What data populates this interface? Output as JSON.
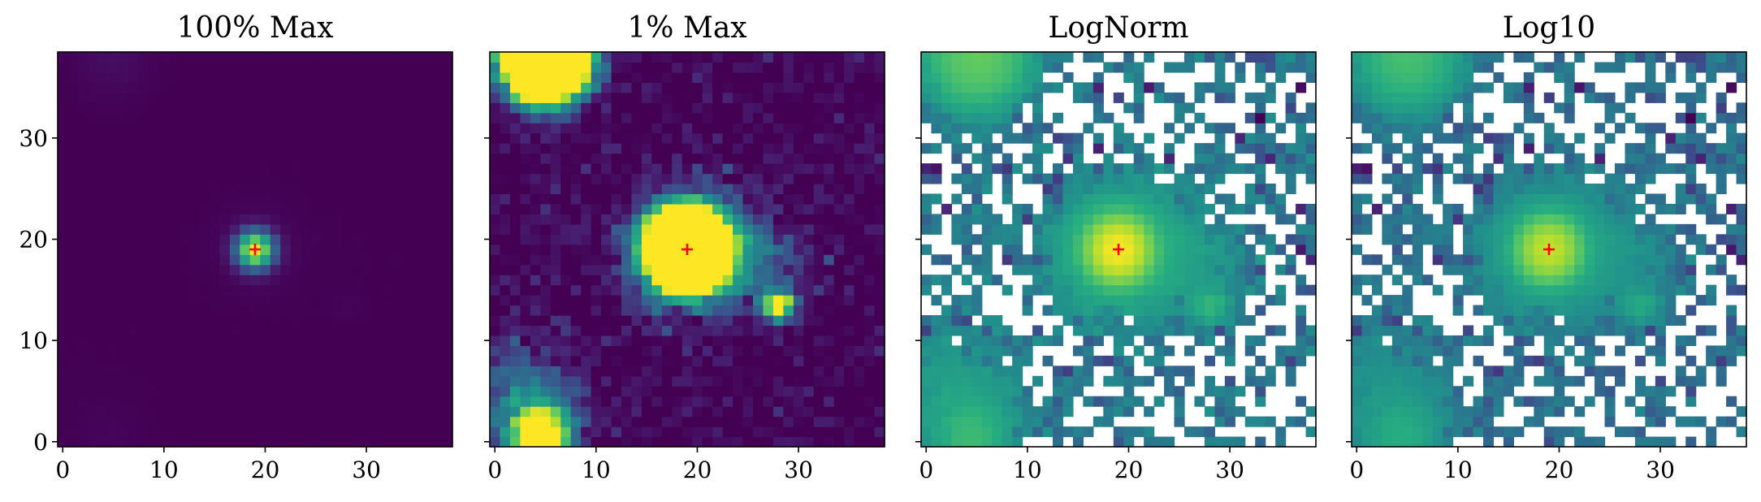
{
  "chart_data": [
    {
      "type": "heatmap",
      "title": "100% Max",
      "xlabel": "",
      "ylabel": "",
      "xlim": [
        -0.5,
        38.5
      ],
      "ylim": [
        -0.5,
        38.5
      ],
      "x_ticks": [
        0,
        10,
        20,
        30
      ],
      "y_ticks": [
        0,
        10,
        20,
        30
      ],
      "y_tick_labels_shown": true,
      "grid": false,
      "colormap": "viridis",
      "norm": "linear",
      "clip_fraction": 1.0,
      "marker": {
        "symbol": "+",
        "x": 19,
        "y": 19,
        "color": "#ff0000"
      }
    },
    {
      "type": "heatmap",
      "title": "1% Max",
      "xlabel": "",
      "ylabel": "",
      "xlim": [
        -0.5,
        38.5
      ],
      "ylim": [
        -0.5,
        38.5
      ],
      "x_ticks": [
        0,
        10,
        20,
        30
      ],
      "y_ticks": [
        0,
        10,
        20,
        30
      ],
      "y_tick_labels_shown": false,
      "grid": false,
      "colormap": "viridis",
      "norm": "linear",
      "clip_fraction": 0.01,
      "marker": {
        "symbol": "+",
        "x": 19,
        "y": 19,
        "color": "#ff0000"
      }
    },
    {
      "type": "heatmap",
      "title": "LogNorm",
      "xlabel": "",
      "ylabel": "",
      "xlim": [
        -0.5,
        38.5
      ],
      "ylim": [
        -0.5,
        38.5
      ],
      "x_ticks": [
        0,
        10,
        20,
        30
      ],
      "y_ticks": [
        0,
        10,
        20,
        30
      ],
      "y_tick_labels_shown": false,
      "grid": false,
      "colormap": "viridis",
      "norm": "log",
      "nonpositive_pixels": "blank",
      "marker": {
        "symbol": "+",
        "x": 19,
        "y": 19,
        "color": "#ff0000"
      }
    },
    {
      "type": "heatmap",
      "title": "Log10",
      "xlabel": "",
      "ylabel": "",
      "xlim": [
        -0.5,
        38.5
      ],
      "ylim": [
        -0.5,
        38.5
      ],
      "x_ticks": [
        0,
        10,
        20,
        30
      ],
      "y_ticks": [
        0,
        10,
        20,
        30
      ],
      "y_tick_labels_shown": false,
      "grid": false,
      "colormap": "viridis",
      "norm": "log10",
      "nonpositive_pixels": "blank",
      "marker": {
        "symbol": "+",
        "x": 19,
        "y": 19,
        "color": "#ff0000"
      }
    }
  ],
  "image_sources": [
    {
      "x": 19,
      "y": 19,
      "peak": 3000,
      "sigma": 1.3
    },
    {
      "x": 19,
      "y": 19,
      "peak": 60,
      "sigma": 3.2
    },
    {
      "x": 5,
      "y": 38,
      "peak": 140,
      "sigma": 2.5
    },
    {
      "x": 28,
      "y": 13.5,
      "peak": 35,
      "sigma": 1.0
    },
    {
      "x": 4.5,
      "y": 0.5,
      "peak": 45,
      "sigma": 1.8
    },
    {
      "x": 3,
      "y": 4,
      "peak": 12,
      "sigma": 4.0
    },
    {
      "x": 26,
      "y": 18,
      "peak": 8,
      "sigma": 3.5
    }
  ],
  "image_noise_level": 2.0,
  "image_size": 39
}
